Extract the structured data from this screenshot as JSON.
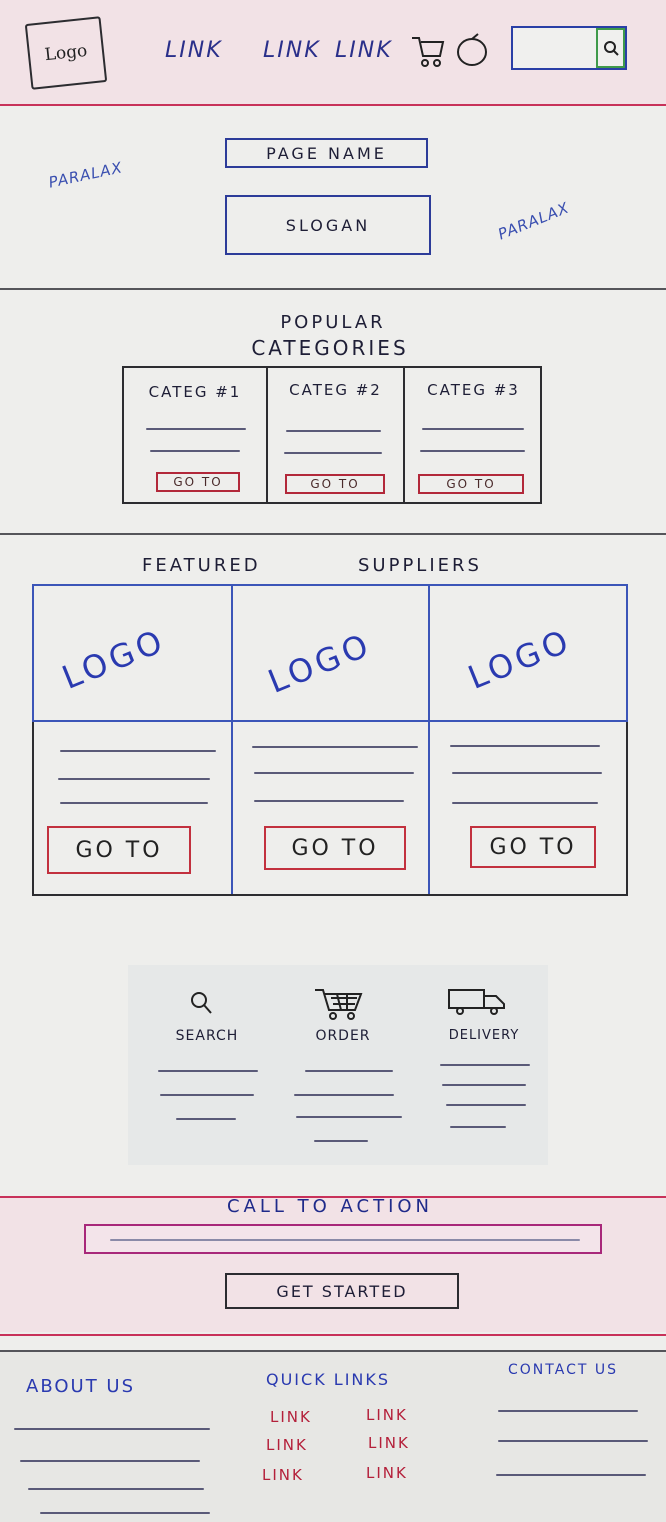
{
  "header": {
    "logo": "Logo",
    "links": [
      "LINK",
      "LINK",
      "LINK"
    ],
    "cart_icon": "cart-icon",
    "user_icon": "user-icon",
    "search_icon": "search-icon"
  },
  "hero": {
    "page_name": "PAGE    NAME",
    "slogan": "SLOGAN",
    "parallax_left": "PARALAX",
    "parallax_right": "PARALAX"
  },
  "categories": {
    "heading_line1": "POPULAR",
    "heading_line2": "CATEGORIES",
    "items": [
      {
        "title": "CATEG #1",
        "button": "GO TO"
      },
      {
        "title": "CATEG #2",
        "button": "GO TO"
      },
      {
        "title": "CATEG #3",
        "button": "GO TO"
      }
    ]
  },
  "suppliers": {
    "heading_left": "FEATURED",
    "heading_right": "SUPPLIERS",
    "items": [
      {
        "logo": "LOGO",
        "button": "GO TO"
      },
      {
        "logo": "LOGO",
        "button": "GO TO"
      },
      {
        "logo": "LOGO",
        "button": "GO TO"
      }
    ]
  },
  "features": [
    {
      "label": "SEARCH",
      "icon": "search-icon"
    },
    {
      "label": "ORDER",
      "icon": "cart-icon"
    },
    {
      "label": "DELIVERY",
      "icon": "truck-icon"
    }
  ],
  "cta": {
    "title": "CALL   TO   ACTION",
    "button": "GET STARTED"
  },
  "footer": {
    "about": "ABOUT US",
    "quick_links": "QUICK   LINKS",
    "contact": "CONTACT US",
    "links": [
      "LINK",
      "LINK",
      "LINK",
      "LINK",
      "LINK",
      "LINK"
    ]
  },
  "colors": {
    "ink_blue": "#2a2f8a",
    "ink_red": "#c8325a",
    "paper": "#eeeeec"
  }
}
